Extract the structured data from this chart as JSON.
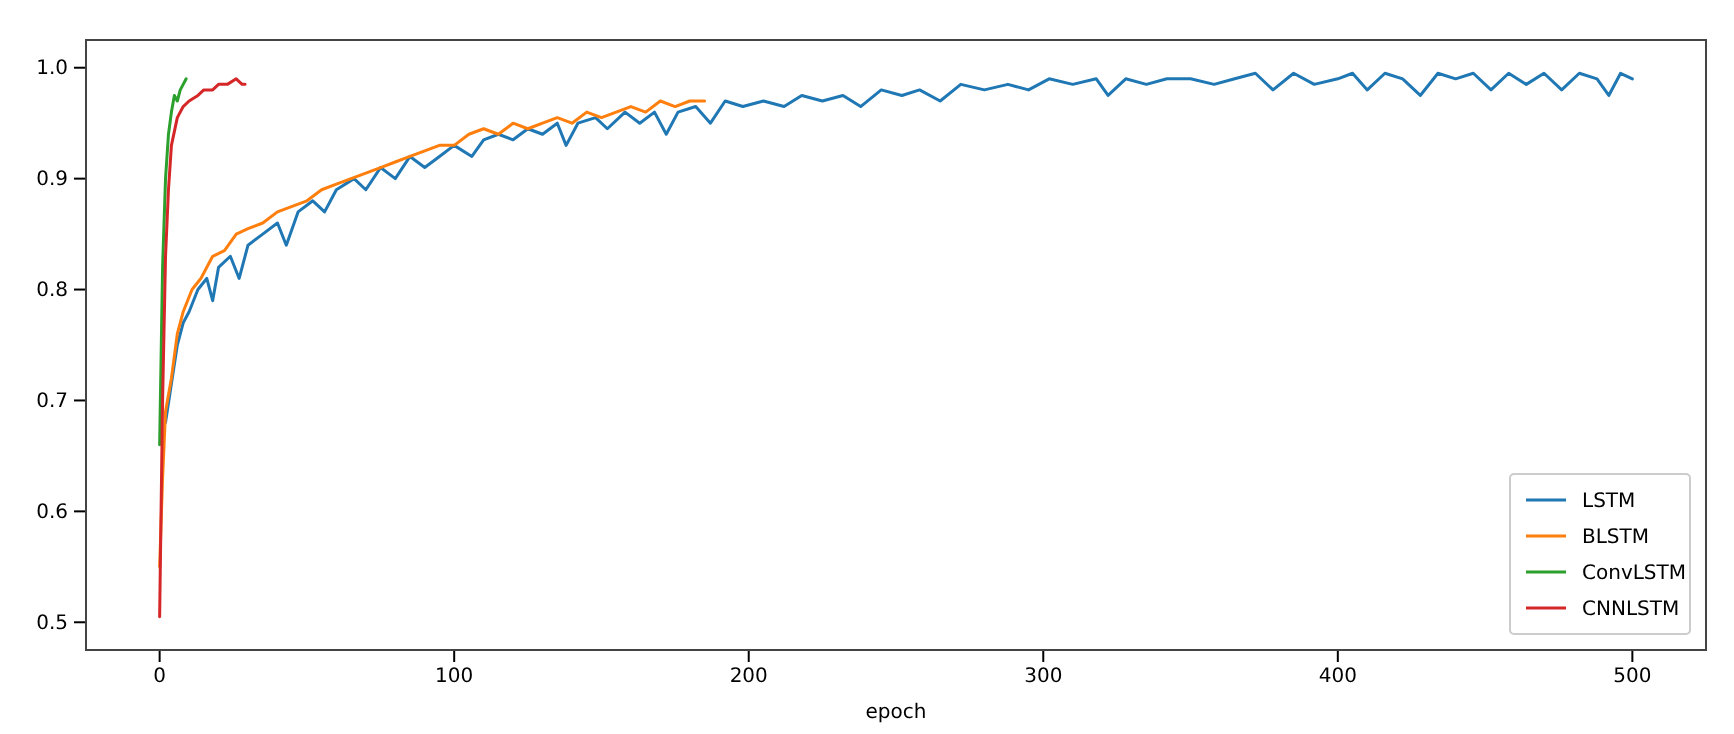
{
  "chart_data": {
    "type": "line",
    "xlabel": "epoch",
    "xlim": [
      -25,
      525
    ],
    "ylim": [
      0.475,
      1.025
    ],
    "xticks": [
      0,
      100,
      200,
      300,
      400,
      500
    ],
    "yticks": [
      {
        "value": 0.5,
        "label": "0.5"
      },
      {
        "value": 0.6,
        "label": "0.6"
      },
      {
        "value": 0.7,
        "label": "0.7"
      },
      {
        "value": 0.8,
        "label": "0.8"
      },
      {
        "value": 0.9,
        "label": "0.9"
      },
      {
        "value": 1.0,
        "label": "1.0"
      }
    ],
    "grid": false,
    "legend": "bottom right",
    "line_style": "solid",
    "marker": "none",
    "series": [
      {
        "name": "LSTM",
        "color": "#1f77b4",
        "x": [
          2,
          6,
          8,
          10,
          13,
          16,
          18,
          20,
          24,
          27,
          30,
          35,
          40,
          43,
          47,
          52,
          56,
          60,
          66,
          70,
          75,
          80,
          85,
          90,
          95,
          100,
          106,
          110,
          115,
          120,
          125,
          130,
          135,
          138,
          142,
          148,
          152,
          158,
          163,
          168,
          172,
          176,
          182,
          187,
          192,
          198,
          205,
          212,
          218,
          225,
          232,
          238,
          245,
          252,
          258,
          265,
          272,
          280,
          288,
          295,
          302,
          310,
          318,
          322,
          328,
          335,
          342,
          350,
          358,
          365,
          372,
          378,
          385,
          392,
          400,
          405,
          410,
          416,
          422,
          428,
          434,
          440,
          446,
          452,
          458,
          464,
          470,
          476,
          482,
          488,
          492,
          496,
          500
        ],
        "values": [
          0.68,
          0.75,
          0.77,
          0.78,
          0.8,
          0.81,
          0.79,
          0.82,
          0.83,
          0.81,
          0.84,
          0.85,
          0.86,
          0.84,
          0.87,
          0.88,
          0.87,
          0.89,
          0.9,
          0.89,
          0.91,
          0.9,
          0.92,
          0.91,
          0.92,
          0.93,
          0.92,
          0.935,
          0.94,
          0.935,
          0.945,
          0.94,
          0.95,
          0.93,
          0.95,
          0.955,
          0.945,
          0.96,
          0.95,
          0.96,
          0.94,
          0.96,
          0.965,
          0.95,
          0.97,
          0.965,
          0.97,
          0.965,
          0.975,
          0.97,
          0.975,
          0.965,
          0.98,
          0.975,
          0.98,
          0.97,
          0.985,
          0.98,
          0.985,
          0.98,
          0.99,
          0.985,
          0.99,
          0.975,
          0.99,
          0.985,
          0.99,
          0.99,
          0.985,
          0.99,
          0.995,
          0.98,
          0.995,
          0.985,
          0.99,
          0.995,
          0.98,
          0.995,
          0.99,
          0.975,
          0.995,
          0.99,
          0.995,
          0.98,
          0.995,
          0.985,
          0.995,
          0.98,
          0.995,
          0.99,
          0.975,
          0.995,
          0.99
        ]
      },
      {
        "name": "BLSTM",
        "color": "#ff7f0e",
        "x": [
          0,
          1,
          2,
          4,
          6,
          8,
          11,
          14,
          18,
          22,
          26,
          30,
          35,
          40,
          45,
          50,
          55,
          60,
          65,
          70,
          75,
          80,
          85,
          90,
          95,
          100,
          105,
          110,
          115,
          120,
          125,
          130,
          135,
          140,
          145,
          150,
          155,
          160,
          165,
          170,
          175,
          180,
          185
        ],
        "values": [
          0.55,
          0.63,
          0.69,
          0.72,
          0.76,
          0.78,
          0.8,
          0.81,
          0.83,
          0.835,
          0.85,
          0.855,
          0.86,
          0.87,
          0.875,
          0.88,
          0.89,
          0.895,
          0.9,
          0.905,
          0.91,
          0.915,
          0.92,
          0.925,
          0.93,
          0.93,
          0.94,
          0.945,
          0.94,
          0.95,
          0.945,
          0.95,
          0.955,
          0.95,
          0.96,
          0.955,
          0.96,
          0.965,
          0.96,
          0.97,
          0.965,
          0.97,
          0.97
        ]
      },
      {
        "name": "ConvLSTM",
        "color": "#2ca02c",
        "x": [
          0,
          1,
          2,
          3,
          4,
          5,
          6,
          7,
          8,
          9
        ],
        "values": [
          0.66,
          0.82,
          0.9,
          0.94,
          0.96,
          0.975,
          0.97,
          0.98,
          0.985,
          0.99
        ]
      },
      {
        "name": "CNNLSTM",
        "color": "#d62728",
        "x": [
          0,
          1,
          2,
          3,
          4,
          6,
          8,
          10,
          13,
          15,
          18,
          20,
          23,
          26,
          28,
          29
        ],
        "values": [
          0.505,
          0.7,
          0.83,
          0.89,
          0.93,
          0.955,
          0.965,
          0.97,
          0.975,
          0.98,
          0.98,
          0.985,
          0.985,
          0.99,
          0.985,
          0.985
        ]
      }
    ]
  }
}
